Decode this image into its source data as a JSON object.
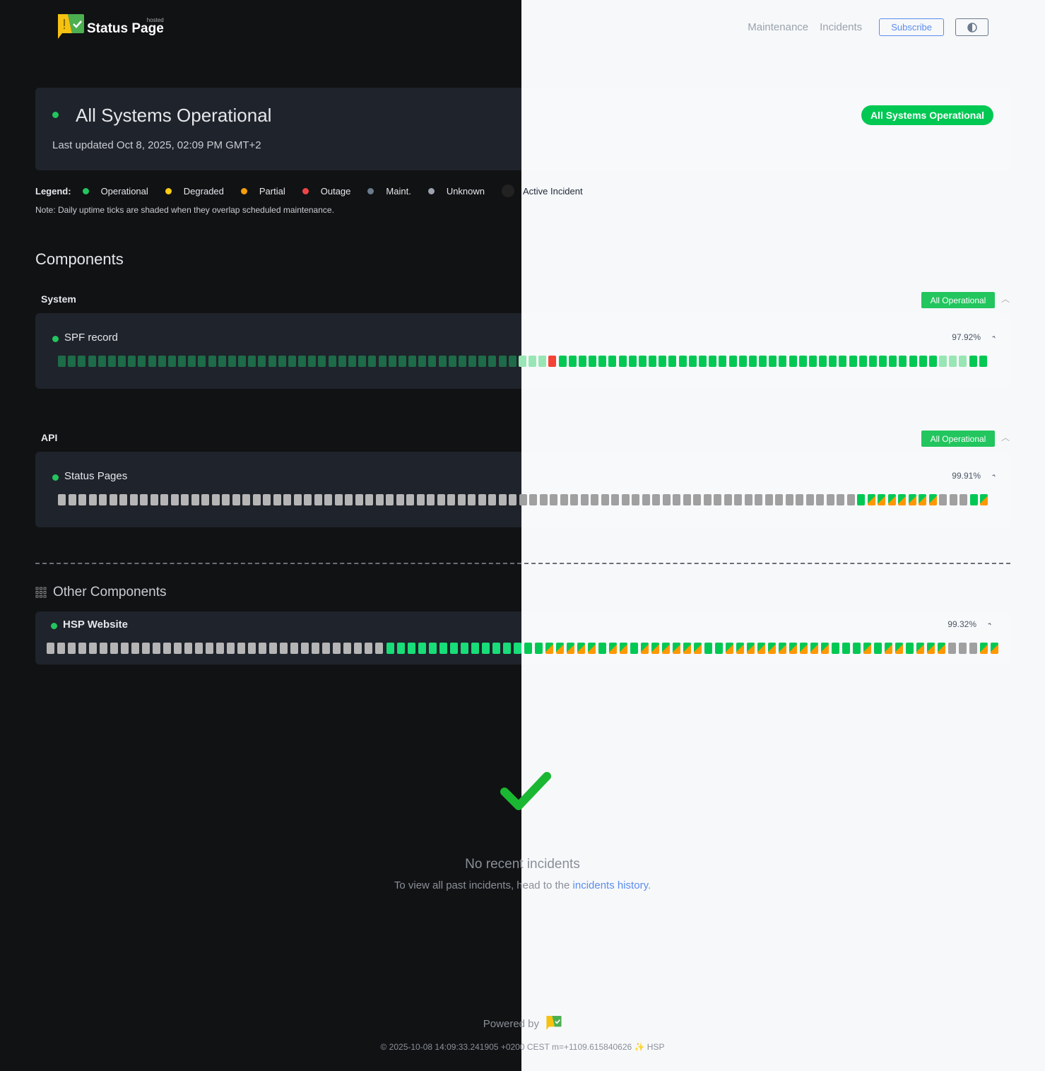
{
  "header": {
    "logo_text": "Status Page",
    "logo_hosted": "hosted",
    "nav": [
      "Maintenance",
      "Incidents"
    ],
    "subscribe": "Subscribe",
    "theme_icon": "half-circle-icon"
  },
  "hero": {
    "title": "All Systems Operational",
    "updated": "Last updated Oct 8, 2025, 02:09 PM GMT+2",
    "badge": "All Systems Operational"
  },
  "legend": {
    "label": "Legend:",
    "items": [
      {
        "label": "Operational",
        "color": "#22c55e"
      },
      {
        "label": "Degraded",
        "color": "#facc15"
      },
      {
        "label": "Partial",
        "color": "#f59e0b"
      },
      {
        "label": "Outage",
        "color": "#ef4444"
      },
      {
        "label": "Maint.",
        "color": "#6b7b8c"
      },
      {
        "label": "Unknown",
        "color": "#9ca3af"
      },
      {
        "label": "Active Incident",
        "color": "#222222"
      }
    ],
    "note": "Note: Daily uptime ticks are shaded when they overlap scheduled maintenance."
  },
  "components_title": "Components",
  "groups": [
    {
      "name": "System",
      "badge": "All Operational",
      "components": [
        {
          "name": "SPF record",
          "uptime": "97.92%",
          "ticks": "oooooooooooooooooooooooooooooooooooooooooooooomm mroooooooooooooooooooooooooooooooooooooommmoo"
        }
      ]
    },
    {
      "name": "API",
      "badge": "All Operational",
      "components": [
        {
          "name": "Status Pages",
          "uptime": "99.91%",
          "ticks": "uuuuuuuuuuuuuuuuuuuuuuuuuuuuuuuuuuuuuuuuuuuuuuuuuuuuuuuuuuuuuuuuuuuuuuuuuuuuuuopppppppuuuop"
        }
      ]
    }
  ],
  "other": {
    "title": "Other Components",
    "components": [
      {
        "name": "HSP Website",
        "uptime": "99.32%",
        "ticks": "uuuuuuuuuuuuuuuuuuuuuuuuuuuuuuuuoooooooooooooggpppppgppgppppppggppppppppppgggpgppgpppuuupp"
      }
    ]
  },
  "incidents": {
    "title": "No recent incidents",
    "text": "To view all past incidents, head to the ",
    "link": "incidents history",
    "end": "."
  },
  "footer": {
    "powered": "Powered by",
    "stamp": "© 2025-10-08 14:09:33.241905 +0200 CEST m=+1109.615840626 ✨ HSP"
  }
}
